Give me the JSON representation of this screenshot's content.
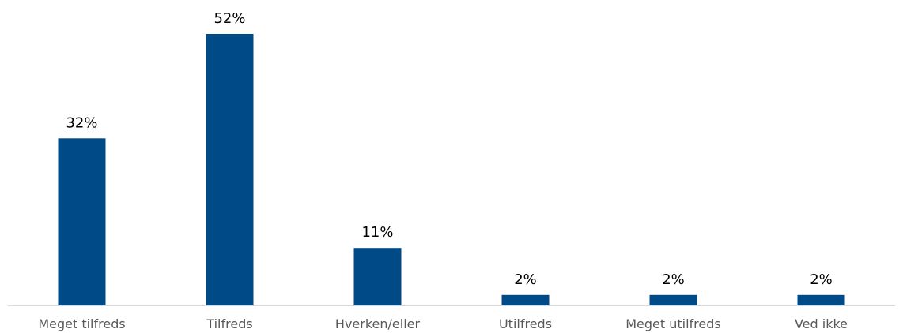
{
  "colors": {
    "bar": "#004B87",
    "axis": "#D9D9D9",
    "data_label": "#000000",
    "tick_label": "#595959",
    "background": "#FFFFFF"
  },
  "chart_data": {
    "type": "bar",
    "title": "",
    "xlabel": "",
    "ylabel": "",
    "categories": [
      "Meget tilfreds",
      "Tilfreds",
      "Hverken/eller",
      "Utilfreds",
      "Meget utilfreds",
      "Ved ikke"
    ],
    "values": [
      32,
      52,
      11,
      2,
      2,
      2
    ],
    "data_labels": [
      "32%",
      "52%",
      "11%",
      "2%",
      "2%",
      "2%"
    ],
    "unit": "%",
    "ylim": [
      0,
      52
    ],
    "grid": false,
    "legend": "none"
  }
}
